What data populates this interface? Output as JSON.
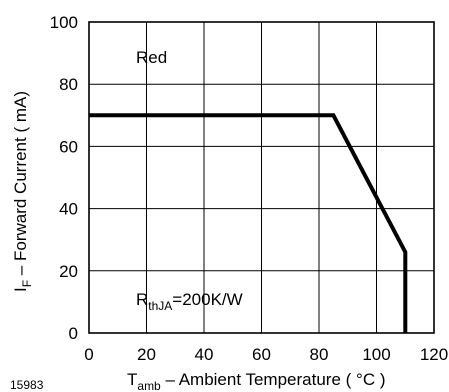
{
  "chart_data": {
    "type": "line",
    "x": [
      0,
      85,
      110,
      110
    ],
    "series": [
      {
        "values": [
          70,
          70,
          26,
          0
        ]
      }
    ],
    "xlim": [
      0,
      120
    ],
    "ylim": [
      0,
      100
    ],
    "xticks": [
      "0",
      "20",
      "40",
      "60",
      "80",
      "100",
      "120"
    ],
    "yticks": [
      "0",
      "20",
      "40",
      "60",
      "80",
      "100"
    ],
    "xlabel_main": "T",
    "xlabel_sub": "amb",
    "xlabel_rest": " – Ambient Temperature ( °C )",
    "ylabel_main": "I",
    "ylabel_sub": "F",
    "ylabel_rest": " – Forward Current ( mA)",
    "annotation_color": "Red",
    "annotation_r_main": "R",
    "annotation_r_sub": "thJA",
    "annotation_r_rest": "=200K/W",
    "grid": true,
    "figure_id": "15983"
  }
}
